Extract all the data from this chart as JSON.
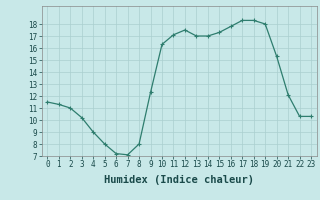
{
  "x": [
    0,
    1,
    2,
    3,
    4,
    5,
    6,
    7,
    8,
    9,
    10,
    11,
    12,
    13,
    14,
    15,
    16,
    17,
    18,
    19,
    20,
    21,
    22,
    23
  ],
  "y": [
    11.5,
    11.3,
    11.0,
    10.2,
    9.0,
    8.0,
    7.2,
    7.1,
    8.0,
    12.3,
    16.3,
    17.1,
    17.5,
    17.0,
    17.0,
    17.3,
    17.8,
    18.3,
    18.3,
    18.0,
    15.3,
    12.1,
    10.3,
    10.3
  ],
  "line_color": "#2e7d6e",
  "marker": "+",
  "bg_color": "#c8e8e8",
  "grid_color": "#aacfcf",
  "xlabel": "Humidex (Indice chaleur)",
  "ylim": [
    7,
    19
  ],
  "xlim_min": -0.5,
  "xlim_max": 23.5,
  "yticks": [
    7,
    8,
    9,
    10,
    11,
    12,
    13,
    14,
    15,
    16,
    17,
    18
  ],
  "xticks": [
    0,
    1,
    2,
    3,
    4,
    5,
    6,
    7,
    8,
    9,
    10,
    11,
    12,
    13,
    14,
    15,
    16,
    17,
    18,
    19,
    20,
    21,
    22,
    23
  ],
  "xtick_labels": [
    "0",
    "1",
    "2",
    "3",
    "4",
    "5",
    "6",
    "7",
    "8",
    "9",
    "10",
    "11",
    "12",
    "13",
    "14",
    "15",
    "16",
    "17",
    "18",
    "19",
    "20",
    "21",
    "22",
    "23"
  ],
  "label_fontsize": 7.5,
  "tick_fontsize": 5.5,
  "marker_size": 3,
  "linewidth": 0.9
}
